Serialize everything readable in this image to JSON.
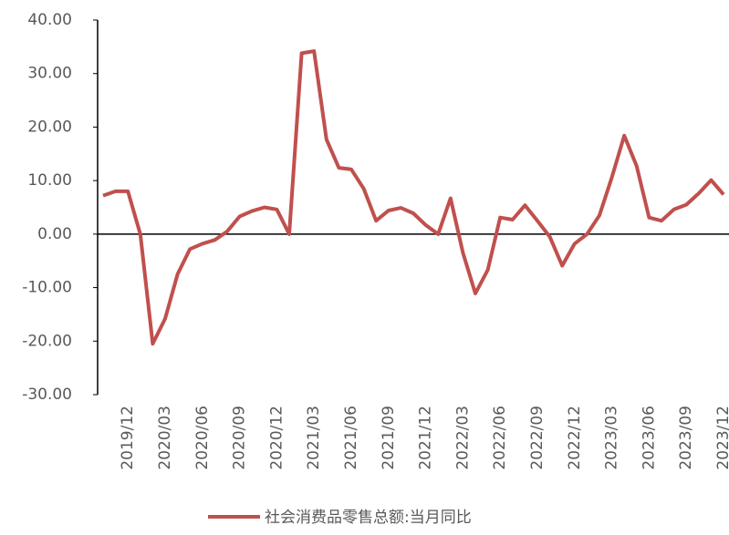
{
  "chart_data": {
    "type": "line",
    "categories": [
      null,
      null,
      "2019/12",
      null,
      null,
      "2020/03",
      null,
      null,
      "2020/06",
      null,
      null,
      "2020/09",
      null,
      null,
      "2020/12",
      null,
      null,
      "2021/03",
      null,
      null,
      "2021/06",
      null,
      null,
      "2021/09",
      null,
      null,
      "2021/12",
      null,
      null,
      "2022/03",
      null,
      null,
      "2022/06",
      null,
      null,
      "2022/09",
      null,
      null,
      "2022/12",
      null,
      null,
      "2023/03",
      null,
      null,
      "2023/06",
      null,
      null,
      "2023/09",
      null,
      null,
      "2023/12"
    ],
    "series": [
      {
        "name": "社会消费品零售总额:当月同比",
        "color": "#c0504d",
        "values": [
          7.2,
          8.0,
          8.0,
          0,
          -20.5,
          -15.8,
          -7.5,
          -2.8,
          -1.8,
          -1.1,
          0.5,
          3.3,
          4.3,
          5.0,
          4.6,
          0,
          33.8,
          34.2,
          17.7,
          12.4,
          12.1,
          8.5,
          2.5,
          4.4,
          4.9,
          3.9,
          1.7,
          0,
          6.7,
          -3.5,
          -11.1,
          -6.7,
          3.1,
          2.7,
          5.4,
          2.5,
          -0.5,
          -5.9,
          -1.8,
          0,
          3.5,
          10.6,
          18.4,
          12.7,
          3.1,
          2.5,
          4.6,
          5.5,
          7.6,
          10.1,
          7.4
        ]
      }
    ],
    "ylim": [
      -30,
      40
    ],
    "yticks": [
      {
        "value": -30,
        "label": "-30.00"
      },
      {
        "value": -20,
        "label": "-20.00"
      },
      {
        "value": -10,
        "label": "-10.00"
      },
      {
        "value": 0,
        "label": "0.00"
      },
      {
        "value": 10,
        "label": "10.00"
      },
      {
        "value": 20,
        "label": "20.00"
      },
      {
        "value": 30,
        "label": "30.00"
      },
      {
        "value": 40,
        "label": "40.00"
      }
    ],
    "legend": "bottom"
  }
}
